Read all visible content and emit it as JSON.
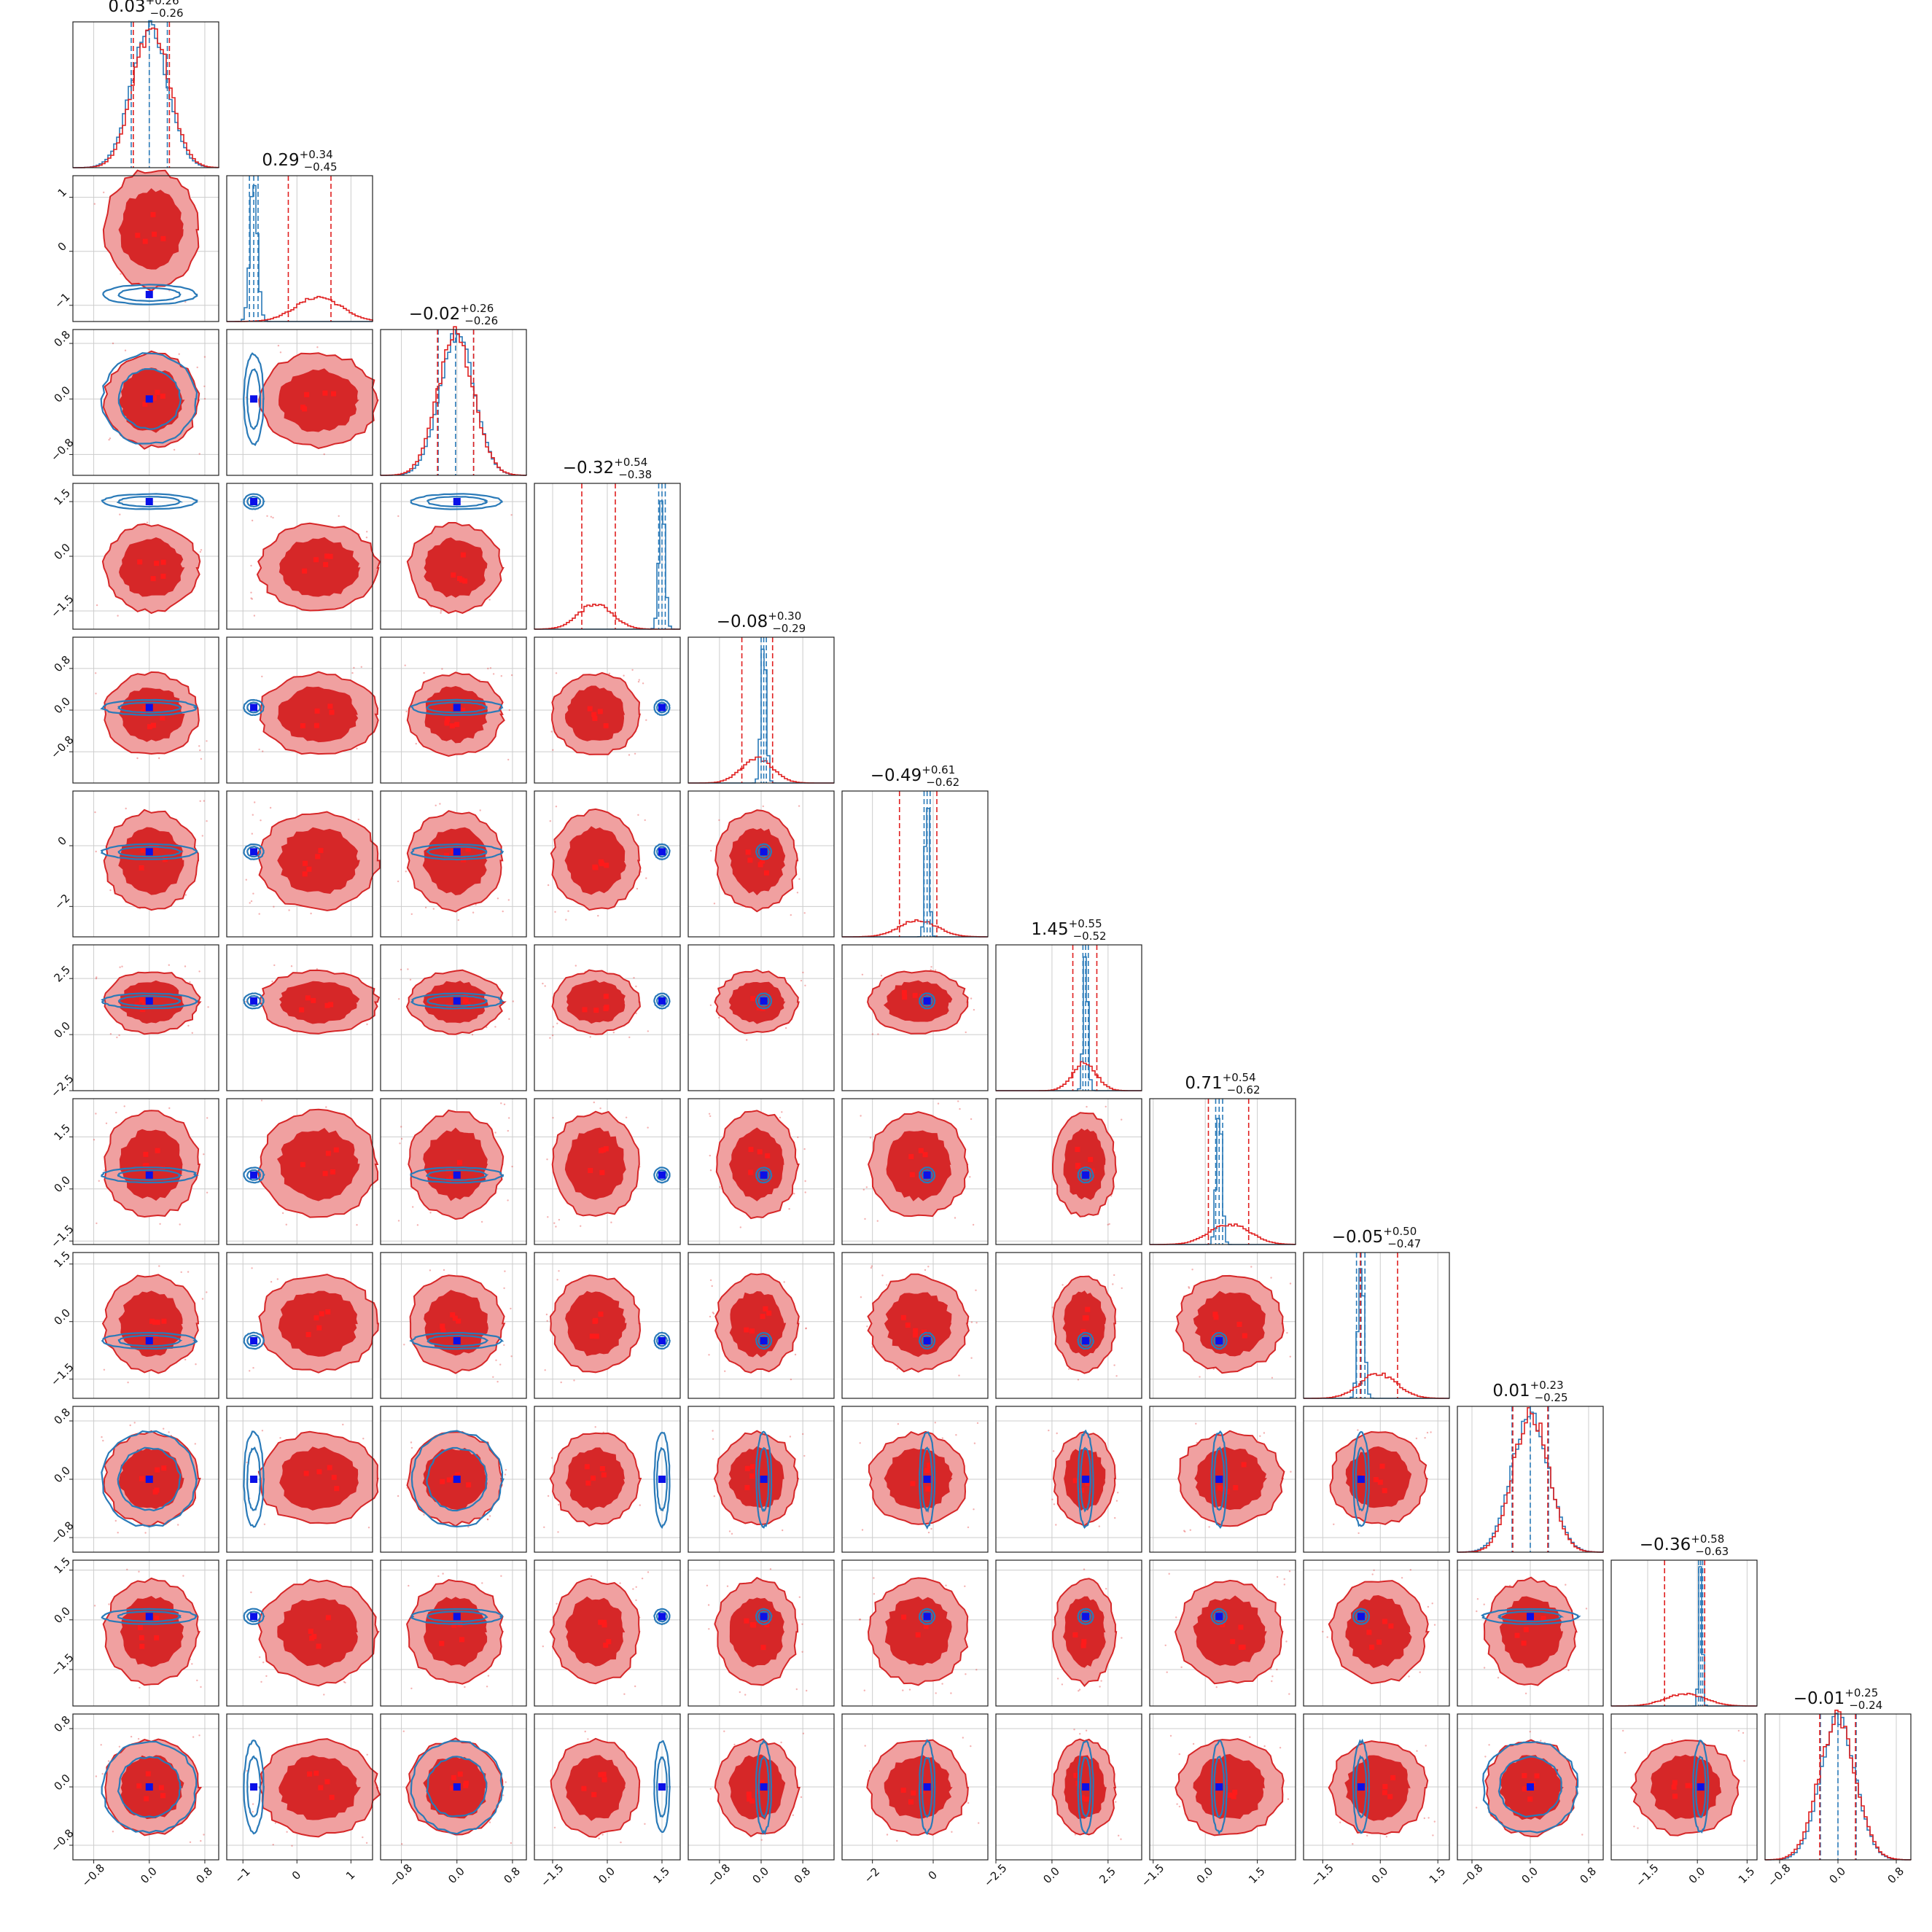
{
  "chart_data": {
    "type": "corner",
    "n_params": 12,
    "series": [
      {
        "name": "",
        "color": "#e02020"
      },
      {
        "name": "",
        "color": "#2a7ab8"
      }
    ],
    "colors": {
      "red": "#e02020",
      "red_light": "#f0a0a0",
      "red_dark": "#d62728",
      "blue": "#2a7ab8",
      "marker_blue": "#0a10e8",
      "grid": "#cccccc"
    },
    "grid": true,
    "params": [
      {
        "title": "0.03",
        "up": "+0.26",
        "lo": "−0.26",
        "range": [
          -1.1,
          1.0
        ],
        "ticks": [
          "−0.8",
          "0.0",
          "0.8"
        ],
        "tick_vals": [
          -0.8,
          0.0,
          0.8
        ],
        "red_center": 0.03,
        "red_sd": 0.26,
        "blue_center": 0.0,
        "blue_sd": 0.26,
        "red_q": [
          -0.23,
          0.03,
          0.29
        ],
        "blue_q": [
          -0.26,
          0.0,
          0.26
        ]
      },
      {
        "title": "0.29",
        "up": "+0.34",
        "lo": "−0.45",
        "range": [
          -1.3,
          1.4
        ],
        "ticks": [
          "−1",
          "0",
          "1"
        ],
        "tick_vals": [
          -1,
          0,
          1
        ],
        "red_center": 0.4,
        "red_sd": 0.42,
        "blue_center": -0.8,
        "blue_sd": 0.07,
        "red_q": [
          -0.16,
          0.29,
          0.63
        ],
        "blue_q": [
          -0.88,
          -0.8,
          -0.72
        ]
      },
      {
        "title": "−0.02",
        "up": "+0.26",
        "lo": "−0.26",
        "range": [
          -1.1,
          1.0
        ],
        "ticks": [
          "−0.8",
          "0.0",
          "0.8"
        ],
        "tick_vals": [
          -0.8,
          0.0,
          0.8
        ],
        "red_center": -0.02,
        "red_sd": 0.26,
        "blue_center": 0.0,
        "blue_sd": 0.25,
        "red_q": [
          -0.28,
          -0.02,
          0.24
        ],
        "blue_q": [
          -0.27,
          -0.02,
          0.24
        ]
      },
      {
        "title": "−0.32",
        "up": "+0.54",
        "lo": "−0.38",
        "range": [
          -2.0,
          2.0
        ],
        "ticks": [
          "−1.5",
          "0.0",
          "1.5"
        ],
        "tick_vals": [
          -1.5,
          0.0,
          1.5
        ],
        "red_center": -0.32,
        "red_sd": 0.46,
        "blue_center": 1.5,
        "blue_sd": 0.08,
        "red_q": [
          -0.7,
          -0.32,
          0.22
        ],
        "blue_q": [
          1.41,
          1.5,
          1.59
        ]
      },
      {
        "title": "−0.08",
        "up": "+0.30",
        "lo": "−0.29",
        "range": [
          -1.4,
          1.4
        ],
        "ticks": [
          "−0.8",
          "0.0",
          "0.8"
        ],
        "tick_vals": [
          -0.8,
          0.0,
          0.8
        ],
        "red_center": -0.08,
        "red_sd": 0.3,
        "blue_center": 0.05,
        "blue_sd": 0.05,
        "red_q": [
          -0.37,
          -0.08,
          0.22
        ],
        "blue_q": [
          0.0,
          0.05,
          0.1
        ]
      },
      {
        "title": "−0.49",
        "up": "+0.61",
        "lo": "−0.62",
        "range": [
          -3.0,
          1.8
        ],
        "ticks": [
          "−2",
          "0"
        ],
        "tick_vals": [
          -2,
          0
        ],
        "red_center": -0.49,
        "red_sd": 0.62,
        "blue_center": -0.2,
        "blue_sd": 0.07,
        "red_q": [
          -1.11,
          -0.49,
          0.12
        ],
        "blue_q": [
          -0.3,
          -0.2,
          -0.1
        ]
      },
      {
        "title": "1.45",
        "up": "+0.55",
        "lo": "−0.52",
        "range": [
          -2.5,
          4.0
        ],
        "ticks": [
          "−2.5",
          "0.0",
          "2.5"
        ],
        "tick_vals": [
          -2.5,
          0.0,
          2.5
        ],
        "red_center": 1.45,
        "red_sd": 0.53,
        "blue_center": 1.5,
        "blue_sd": 0.1,
        "red_q": [
          0.93,
          1.45,
          2.0
        ],
        "blue_q": [
          1.38,
          1.5,
          1.62
        ]
      },
      {
        "title": "0.71",
        "up": "+0.54",
        "lo": "−0.62",
        "range": [
          -1.6,
          2.6
        ],
        "ticks": [
          "−1.5",
          "0.0",
          "1.5"
        ],
        "tick_vals": [
          -1.5,
          0.0,
          1.5
        ],
        "red_center": 0.71,
        "red_sd": 0.58,
        "blue_center": 0.4,
        "blue_sd": 0.08,
        "red_q": [
          0.09,
          0.71,
          1.25
        ],
        "blue_q": [
          0.3,
          0.4,
          0.5
        ]
      },
      {
        "title": "−0.05",
        "up": "+0.50",
        "lo": "−0.47",
        "range": [
          -2.0,
          1.8
        ],
        "ticks": [
          "−1.5",
          "0.0",
          "1.5"
        ],
        "tick_vals": [
          -1.5,
          0.0,
          1.5
        ],
        "red_center": -0.05,
        "red_sd": 0.48,
        "blue_center": -0.5,
        "blue_sd": 0.08,
        "red_q": [
          -0.52,
          -0.05,
          0.45
        ],
        "blue_q": [
          -0.62,
          -0.5,
          -0.4
        ]
      },
      {
        "title": "0.01",
        "up": "+0.23",
        "lo": "−0.25",
        "range": [
          -1.0,
          1.0
        ],
        "ticks": [
          "−0.8",
          "0.0",
          "0.8"
        ],
        "tick_vals": [
          -0.8,
          0.0,
          0.8
        ],
        "red_center": 0.01,
        "red_sd": 0.24,
        "blue_center": 0.0,
        "blue_sd": 0.25,
        "red_q": [
          -0.24,
          0.01,
          0.24
        ],
        "blue_q": [
          -0.25,
          0.0,
          0.25
        ]
      },
      {
        "title": "−0.36",
        "up": "+0.58",
        "lo": "−0.63",
        "range": [
          -2.6,
          1.8
        ],
        "ticks": [
          "−1.5",
          "0.0",
          "1.5"
        ],
        "tick_vals": [
          -1.5,
          0.0,
          1.5
        ],
        "red_center": -0.36,
        "red_sd": 0.6,
        "blue_center": 0.1,
        "blue_sd": 0.05,
        "red_q": [
          -0.99,
          -0.36,
          0.22
        ],
        "blue_q": [
          0.04,
          0.1,
          0.16
        ]
      },
      {
        "title": "−0.01",
        "up": "+0.25",
        "lo": "−0.24",
        "range": [
          -1.0,
          1.0
        ],
        "ticks": [
          "−0.8",
          "0.0",
          "0.8"
        ],
        "tick_vals": [
          -0.8,
          0.0,
          0.8
        ],
        "red_center": -0.01,
        "red_sd": 0.25,
        "blue_center": 0.0,
        "blue_sd": 0.24,
        "red_q": [
          -0.25,
          -0.01,
          0.24
        ],
        "blue_q": [
          -0.24,
          0.0,
          0.25
        ]
      }
    ]
  }
}
